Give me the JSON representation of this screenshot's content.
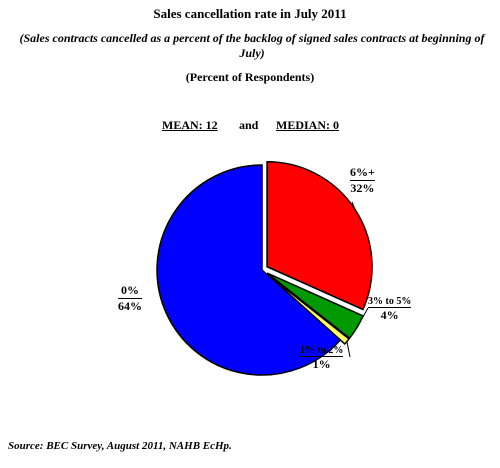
{
  "header": {
    "title": "Sales cancellation rate in July 2011",
    "subtitle": "(Sales contracts cancelled as a percent of the backlog of signed sales contracts at beginning of July)",
    "units": "(Percent of Respondents)"
  },
  "stats": {
    "mean": "MEAN: 12",
    "and": "and",
    "median": "MEDIAN: 0"
  },
  "chart_data": {
    "type": "pie",
    "categories": [
      "0%",
      "1% to 2%",
      "3% to 5%",
      "6%+"
    ],
    "values": [
      64,
      1,
      4,
      32
    ],
    "value_labels": [
      "64%",
      "1%",
      "4%",
      "32%"
    ],
    "colors": [
      "#0000ff",
      "#ffff66",
      "#009900",
      "#ff0000"
    ],
    "exploded": [
      false,
      true,
      true,
      true
    ],
    "start_angle_deg": 0
  },
  "footer": {
    "source": "Source: BEC Survey, August 2011, NAHB EcHp."
  }
}
